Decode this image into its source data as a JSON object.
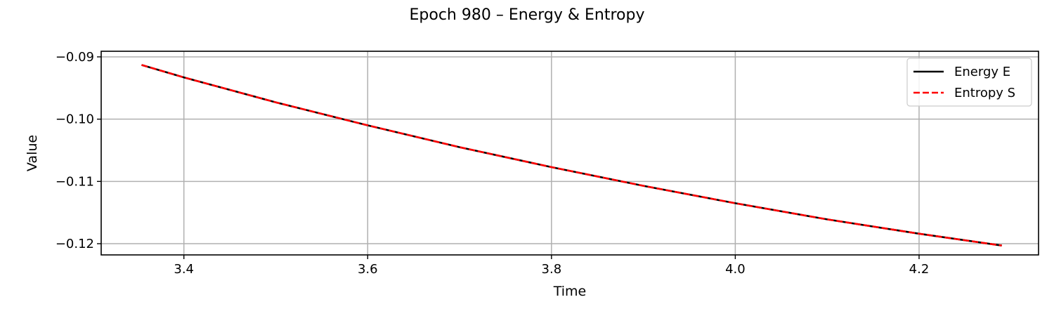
{
  "chart_data": {
    "type": "line",
    "title": "Epoch 980 – Energy & Entropy",
    "xlabel": "Time",
    "ylabel": "Value",
    "xlim": [
      3.31,
      4.33
    ],
    "ylim": [
      -0.1218,
      -0.0891
    ],
    "xticks": [
      3.4,
      3.6,
      3.8,
      4.0,
      4.2
    ],
    "xtick_labels": [
      "3.4",
      "3.6",
      "3.8",
      "4.0",
      "4.2"
    ],
    "yticks": [
      -0.09,
      -0.1,
      -0.11,
      -0.12
    ],
    "ytick_labels": [
      "−0.09",
      "−0.10",
      "−0.11",
      "−0.12"
    ],
    "grid": true,
    "legend": "top-right",
    "x": [
      3.354,
      3.4,
      3.5,
      3.6,
      3.7,
      3.8,
      3.9,
      4.0,
      4.1,
      4.2,
      4.29
    ],
    "series": [
      {
        "name": "Energy E",
        "color": "#000000",
        "style": "solid",
        "values": [
          -0.0913,
          -0.0933,
          -0.0973,
          -0.101,
          -0.1045,
          -0.1077,
          -0.1107,
          -0.1135,
          -0.1161,
          -0.1184,
          -0.1203
        ]
      },
      {
        "name": "Entropy S",
        "color": "#ff0000",
        "style": "dashed",
        "values": [
          -0.0913,
          -0.0933,
          -0.0973,
          -0.101,
          -0.1045,
          -0.1077,
          -0.1107,
          -0.1135,
          -0.1161,
          -0.1184,
          -0.1203
        ]
      }
    ]
  }
}
